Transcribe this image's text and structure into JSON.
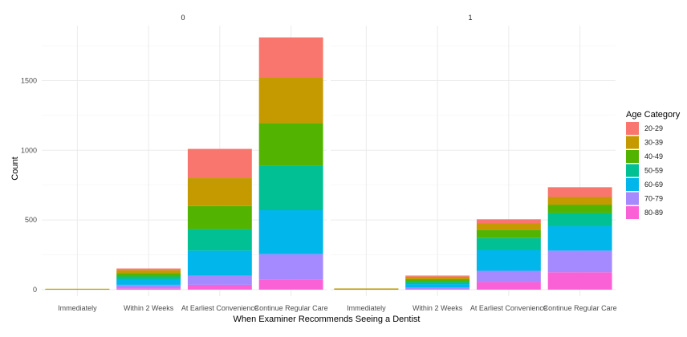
{
  "chart_data": {
    "type": "bar",
    "stacked": true,
    "facet_labels": [
      "0",
      "1"
    ],
    "categories": [
      "Immediately",
      "Within 2 Weeks",
      "At Earliest Convenience",
      "Continue Regular Care"
    ],
    "xlabel": "When Examiner Recommends Seeing a Dentist",
    "ylabel": "Count",
    "y_ticks": [
      "0",
      "500",
      "1000",
      "1500"
    ],
    "ylim": [
      0,
      1850
    ],
    "grid": true,
    "legend": {
      "title": "Age Category",
      "position": "right"
    },
    "series": [
      {
        "name": "20-29",
        "color": "#F8766D",
        "facet0": [
          0,
          12,
          210,
          290
        ],
        "facet1": [
          0,
          8,
          30,
          70
        ]
      },
      {
        "name": "30-39",
        "color": "#C49A00",
        "facet0": [
          2,
          20,
          200,
          325
        ],
        "facet1": [
          1,
          18,
          45,
          55
        ]
      },
      {
        "name": "40-49",
        "color": "#53B400",
        "facet0": [
          1,
          25,
          165,
          305
        ],
        "facet1": [
          1,
          20,
          60,
          60
        ]
      },
      {
        "name": "50-59",
        "color": "#00C094",
        "facet0": [
          0,
          20,
          155,
          320
        ],
        "facet1": [
          1,
          15,
          85,
          95
        ]
      },
      {
        "name": "60-69",
        "color": "#00B6EB",
        "facet0": [
          0,
          40,
          180,
          315
        ],
        "facet1": [
          1,
          25,
          150,
          175
        ]
      },
      {
        "name": "70-79",
        "color": "#A58AFF",
        "facet0": [
          0,
          25,
          65,
          185
        ],
        "facet1": [
          0,
          10,
          80,
          155
        ]
      },
      {
        "name": "80-89",
        "color": "#FB61D7",
        "facet0": [
          0,
          10,
          35,
          70
        ],
        "facet1": [
          0,
          5,
          55,
          125
        ]
      }
    ]
  }
}
